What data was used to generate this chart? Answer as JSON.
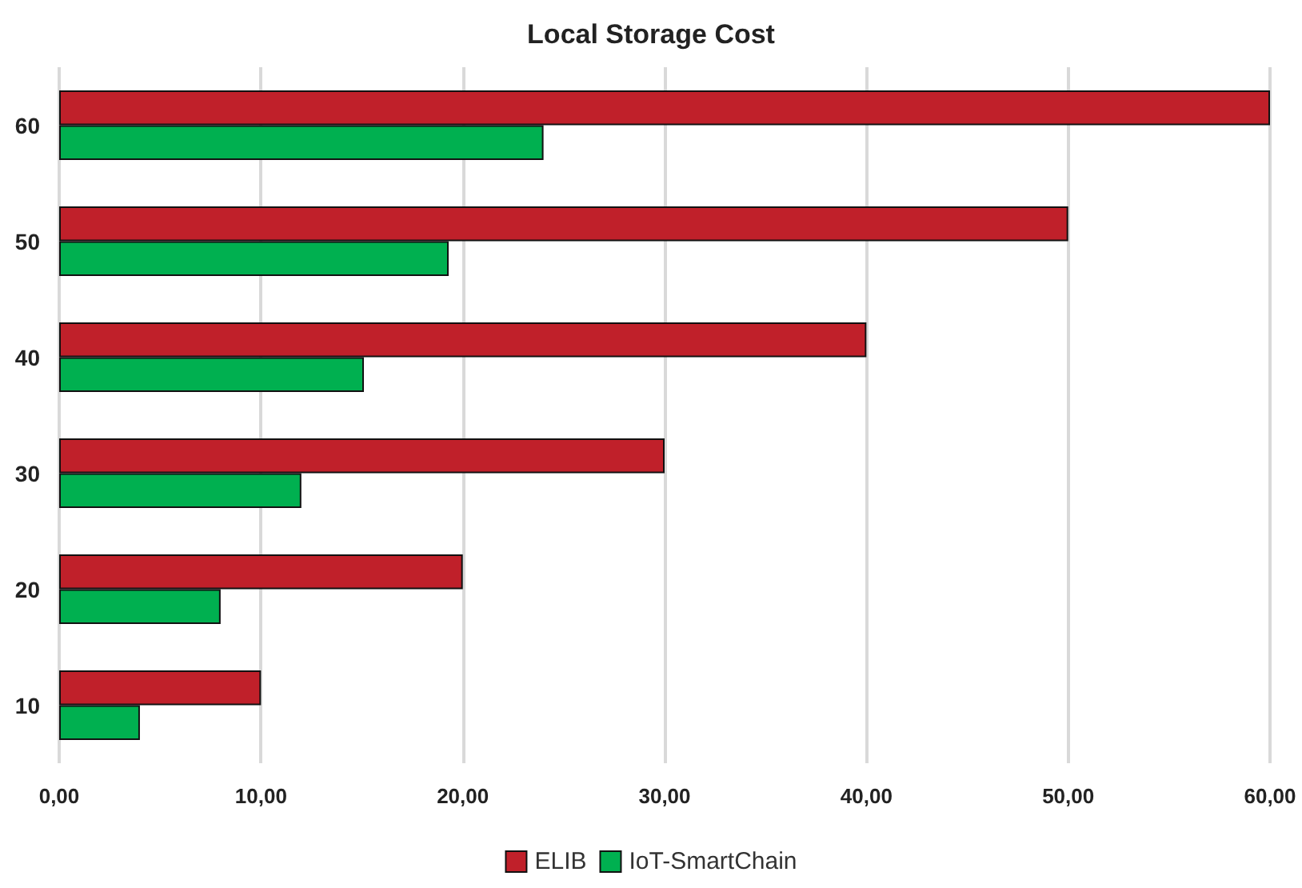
{
  "chart_data": {
    "type": "bar",
    "orientation": "horizontal",
    "title": "Local Storage Cost",
    "categories": [
      "60",
      "50",
      "40",
      "30",
      "20",
      "10"
    ],
    "series": [
      {
        "name": "ELIB",
        "color": "#c0202a",
        "values": [
          60,
          50,
          40,
          30,
          20,
          10
        ]
      },
      {
        "name": "IoT-SmartChain",
        "color": "#00b050",
        "values": [
          24,
          19.3,
          15.1,
          12,
          8,
          4
        ]
      }
    ],
    "xlim": [
      0,
      60
    ],
    "xticks": [
      {
        "value": 0,
        "label": "0,00"
      },
      {
        "value": 10,
        "label": "10,00"
      },
      {
        "value": 20,
        "label": "20,00"
      },
      {
        "value": 30,
        "label": "30,00"
      },
      {
        "value": 40,
        "label": "40,00"
      },
      {
        "value": 50,
        "label": "50,00"
      },
      {
        "value": 60,
        "label": "60,00"
      }
    ],
    "grid": "x",
    "legend": "bottom"
  }
}
